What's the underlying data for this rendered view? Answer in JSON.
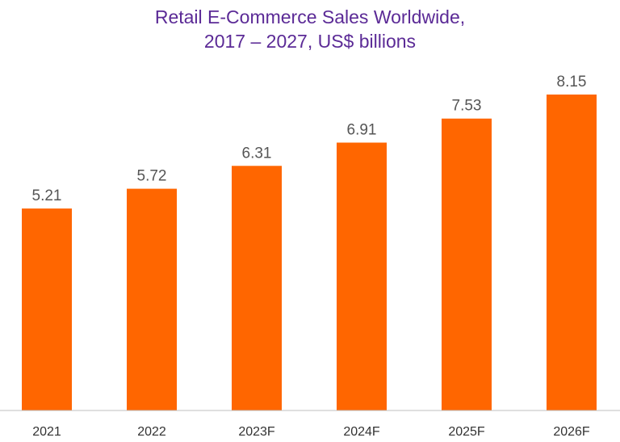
{
  "chart_data": {
    "type": "bar",
    "title_line1": "Retail E-Commerce Sales Worldwide,",
    "title_line2": "2017 – 2027, US$ billions",
    "categories": [
      "2021",
      "2022",
      "2023F",
      "2024F",
      "2025F",
      "2026F"
    ],
    "values": [
      5.21,
      5.72,
      6.31,
      6.91,
      7.53,
      8.15
    ],
    "value_labels": [
      "5.21",
      "5.72",
      "6.31",
      "6.91",
      "7.53",
      "8.15"
    ],
    "xlabel": "",
    "ylabel": "",
    "ylim": [
      0,
      8.15
    ],
    "grid": false,
    "legend": "none",
    "bar_color": "#ff6600",
    "title_color": "#5b2a96",
    "axis_color": "#bfbfbf"
  }
}
